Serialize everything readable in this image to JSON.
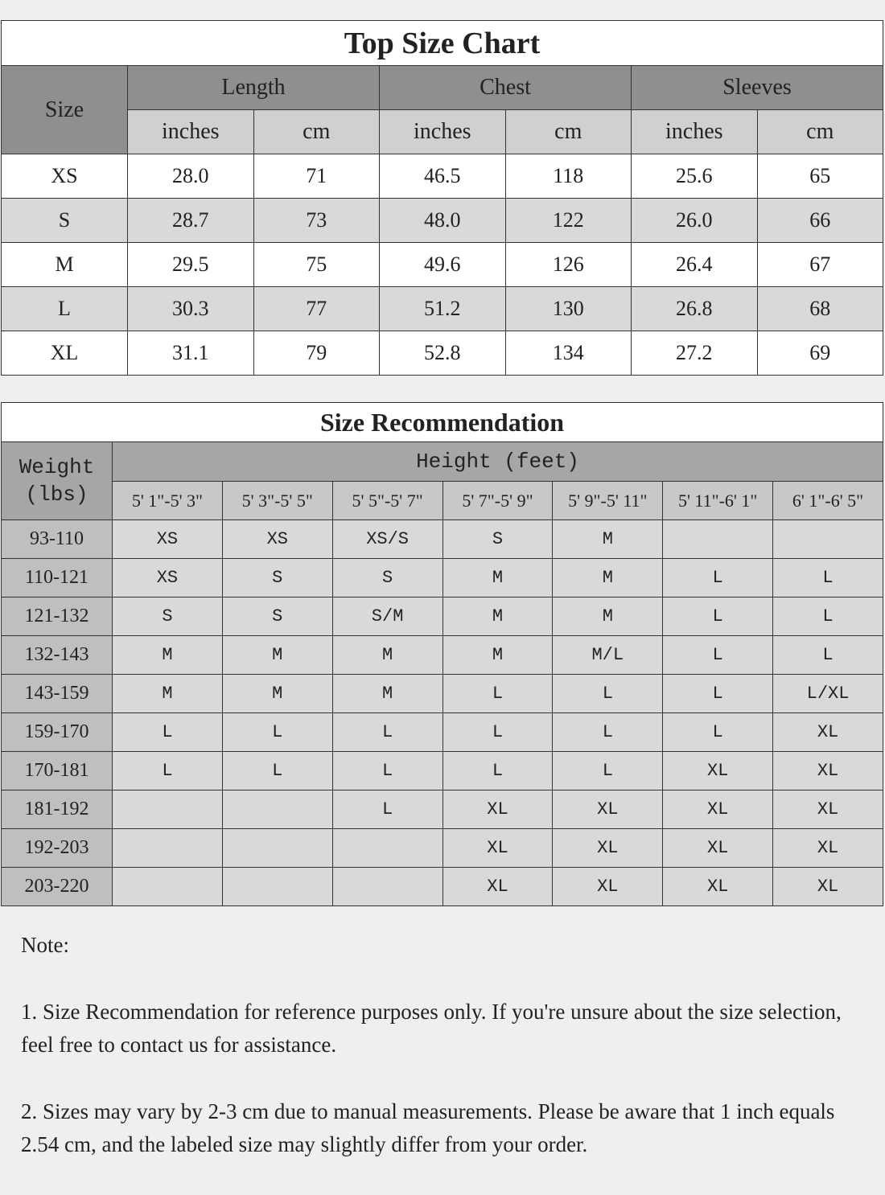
{
  "size_chart": {
    "title": "Top Size Chart",
    "size_label": "Size",
    "groups": [
      "Length",
      "Chest",
      "Sleeves"
    ],
    "units": [
      "inches",
      "cm",
      "inches",
      "cm",
      "inches",
      "cm"
    ],
    "rows": [
      [
        "XS",
        "28.0",
        "71",
        "46.5",
        "118",
        "25.6",
        "65"
      ],
      [
        "S",
        "28.7",
        "73",
        "48.0",
        "122",
        "26.0",
        "66"
      ],
      [
        "M",
        "29.5",
        "75",
        "49.6",
        "126",
        "26.4",
        "67"
      ],
      [
        "L",
        "30.3",
        "77",
        "51.2",
        "130",
        "26.8",
        "68"
      ],
      [
        "XL",
        "31.1",
        "79",
        "52.8",
        "134",
        "27.2",
        "69"
      ]
    ]
  },
  "recommendation": {
    "title": "Size Recommendation",
    "weight_label": "Weight",
    "weight_unit": "(lbs)",
    "height_label": "Height (feet)",
    "heights": [
      "5' 1\"-5' 3\"",
      "5' 3\"-5' 5\"",
      "5' 5\"-5' 7\"",
      "5' 7\"-5' 9\"",
      "5' 9\"-5' 11\"",
      "5' 11\"-6' 1\"",
      "6' 1\"-6' 5\""
    ],
    "rows": [
      [
        "93-110",
        "XS",
        "XS",
        "XS/S",
        "S",
        "M",
        "",
        ""
      ],
      [
        "110-121",
        "XS",
        "S",
        "S",
        "M",
        "M",
        "L",
        "L"
      ],
      [
        "121-132",
        "S",
        "S",
        "S/M",
        "M",
        "M",
        "L",
        "L"
      ],
      [
        "132-143",
        "M",
        "M",
        "M",
        "M",
        "M/L",
        "L",
        "L"
      ],
      [
        "143-159",
        "M",
        "M",
        "M",
        "L",
        "L",
        "L",
        "L/XL"
      ],
      [
        "159-170",
        "L",
        "L",
        "L",
        "L",
        "L",
        "L",
        "XL"
      ],
      [
        "170-181",
        "L",
        "L",
        "L",
        "L",
        "L",
        "XL",
        "XL"
      ],
      [
        "181-192",
        "",
        "",
        "L",
        "XL",
        "XL",
        "XL",
        "XL"
      ],
      [
        "192-203",
        "",
        "",
        "",
        "XL",
        "XL",
        "XL",
        "XL"
      ],
      [
        "203-220",
        "",
        "",
        "",
        "XL",
        "XL",
        "XL",
        "XL"
      ]
    ]
  },
  "notes": {
    "heading": "Note:",
    "items": [
      "1. Size Recommendation for reference purposes only. If you're unsure about the size selection, feel free to contact us for assistance.",
      "2. Sizes may vary by 2-3 cm due to manual measurements. Please be aware that 1 inch equals 2.54 cm, and the labeled size may slightly differ from your order."
    ]
  }
}
